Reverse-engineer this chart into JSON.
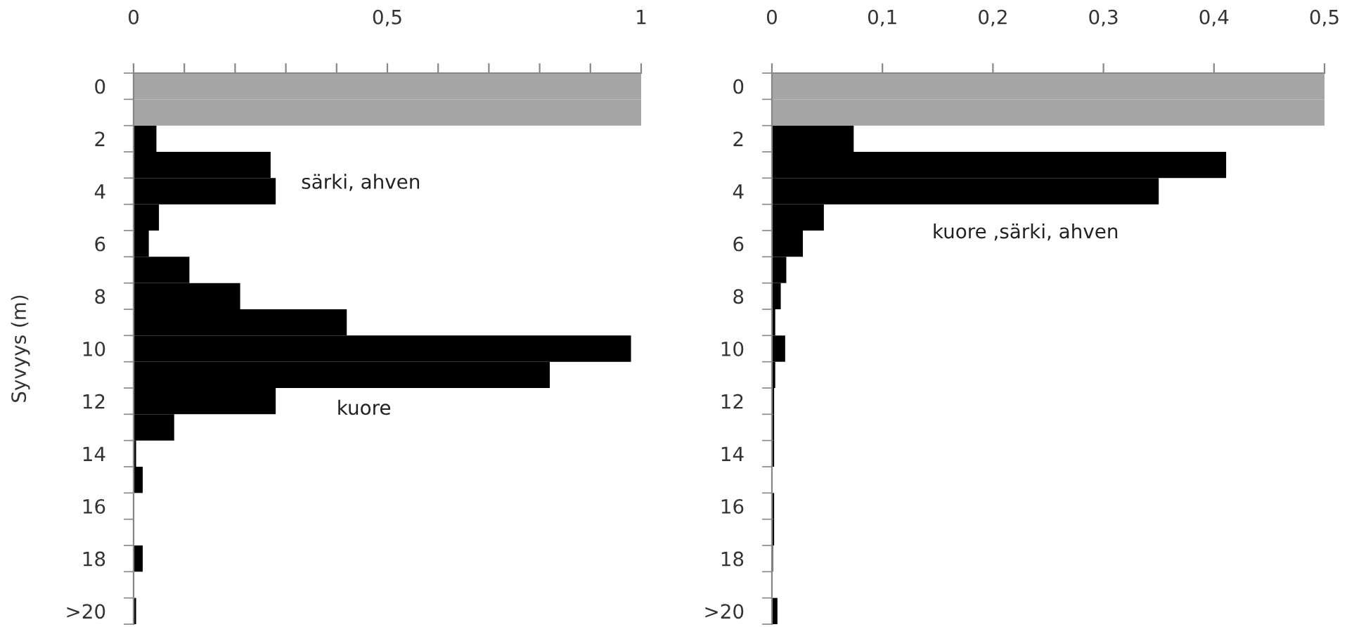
{
  "chart_data": [
    {
      "type": "bar",
      "orientation": "horizontal",
      "ylabel": "Syvyys (m)",
      "categories": [
        "0",
        null,
        "2",
        null,
        "4",
        null,
        "6",
        null,
        "8",
        null,
        "10",
        null,
        "12",
        null,
        "14",
        null,
        "16",
        null,
        "18",
        null,
        ">20"
      ],
      "values": [
        1,
        1,
        0.045,
        0.27,
        0.28,
        0.05,
        0.03,
        0.11,
        0.21,
        0.42,
        0.98,
        0.82,
        0.28,
        0.08,
        0.005,
        0.018,
        null,
        null,
        0.018,
        null,
        0.005
      ],
      "colors": [
        "#a6a6a6",
        "#a6a6a6",
        "#000000",
        "#000000",
        "#000000",
        "#000000",
        "#000000",
        "#000000",
        "#000000",
        "#000000",
        "#000000",
        "#000000",
        "#000000",
        "#000000",
        "#000000",
        "#000000",
        "#000000",
        "#000000",
        "#000000",
        "#000000",
        "#000000"
      ],
      "xlim": [
        0,
        1
      ],
      "xticks": [
        0,
        {
          "value": 0.1,
          "label": null
        },
        {
          "value": 0.2,
          "label": null
        },
        {
          "value": 0.3,
          "label": null
        },
        {
          "value": 0.4,
          "label": null
        },
        {
          "value": 0.5,
          "label": "0,5"
        },
        {
          "value": 0.6,
          "label": null
        },
        {
          "value": 0.7,
          "label": null
        },
        {
          "value": 0.8,
          "label": null
        },
        {
          "value": 0.9,
          "label": null
        },
        1
      ],
      "annotations": [
        "särki, ahven",
        "kuore"
      ]
    },
    {
      "type": "bar",
      "orientation": "horizontal",
      "categories": [
        "0",
        null,
        "2",
        null,
        "4",
        null,
        "6",
        null,
        "8",
        null,
        "10",
        null,
        "12",
        null,
        "14",
        null,
        "16",
        null,
        "18",
        null,
        ">20"
      ],
      "values": [
        0.5,
        0.5,
        0.074,
        0.411,
        0.35,
        0.047,
        0.028,
        0.013,
        0.008,
        0.003,
        0.012,
        0.003,
        0.002,
        0.002,
        0.002,
        0,
        0.002,
        0.002,
        0.001,
        0,
        0.005
      ],
      "colors": [
        "#a6a6a6",
        "#a6a6a6",
        "#000000",
        "#000000",
        "#000000",
        "#000000",
        "#000000",
        "#000000",
        "#000000",
        "#000000",
        "#000000",
        "#000000",
        "#000000",
        "#000000",
        "#000000",
        "#000000",
        "#000000",
        "#000000",
        "#000000",
        "#000000",
        "#000000"
      ],
      "xlim": [
        0,
        0.5
      ],
      "xticks": [
        0,
        {
          "value": 0.1,
          "label": "0,1"
        },
        {
          "value": 0.2,
          "label": "0,2"
        },
        {
          "value": 0.3,
          "label": "0,3"
        },
        {
          "value": 0.4,
          "label": "0,4"
        },
        {
          "value": 0.5,
          "label": "0,5"
        }
      ],
      "annotations": [
        "kuore ,särki, ahven"
      ]
    }
  ]
}
